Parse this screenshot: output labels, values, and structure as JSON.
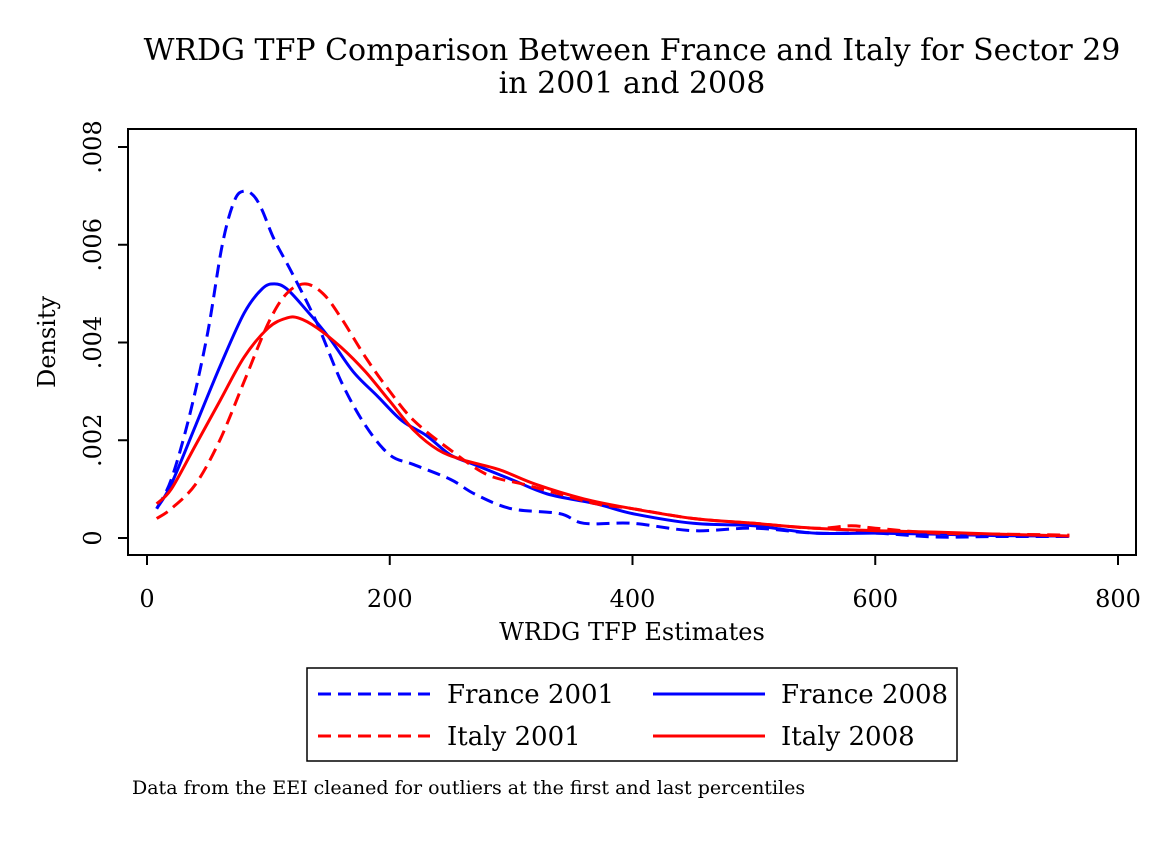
{
  "chart_data": {
    "type": "line",
    "title": "WRDG TFP Comparison Between France and Italy for Sector 29",
    "title_line2": "in 2001 and 2008",
    "xlabel": "WRDG TFP Estimates",
    "ylabel": "Density",
    "xlim": [
      0,
      800
    ],
    "ylim": [
      0,
      0.008
    ],
    "x_ticks": [
      0,
      200,
      400,
      600,
      800
    ],
    "x_tick_labels": [
      "0",
      "200",
      "400",
      "600",
      "800"
    ],
    "y_ticks": [
      0,
      0.002,
      0.004,
      0.006,
      0.008
    ],
    "y_tick_labels": [
      "0",
      ".002",
      ".004",
      ".006",
      ".008"
    ],
    "grid": false,
    "legend_position": "bottom",
    "note": "Data from the EEI cleaned for outliers at the first and last percentiles",
    "series": [
      {
        "name": "France 2001",
        "color": "#0000ff",
        "dash": "dashed",
        "points": [
          [
            8,
            0.0006
          ],
          [
            20,
            0.0012
          ],
          [
            35,
            0.0025
          ],
          [
            50,
            0.0042
          ],
          [
            62,
            0.006
          ],
          [
            72,
            0.0069
          ],
          [
            80,
            0.0071
          ],
          [
            88,
            0.007
          ],
          [
            95,
            0.0067
          ],
          [
            105,
            0.0061
          ],
          [
            120,
            0.0054
          ],
          [
            140,
            0.0044
          ],
          [
            160,
            0.0032
          ],
          [
            180,
            0.0023
          ],
          [
            200,
            0.0017
          ],
          [
            220,
            0.0015
          ],
          [
            250,
            0.0012
          ],
          [
            270,
            0.0009
          ],
          [
            300,
            0.0006
          ],
          [
            340,
            0.0005
          ],
          [
            360,
            0.0003
          ],
          [
            400,
            0.0003
          ],
          [
            450,
            0.00015
          ],
          [
            500,
            0.0002
          ],
          [
            550,
            0.0001
          ],
          [
            600,
            0.0001
          ],
          [
            650,
            2e-05
          ],
          [
            700,
            3e-05
          ],
          [
            760,
            3e-05
          ]
        ]
      },
      {
        "name": "France 2008",
        "color": "#0000ff",
        "dash": "solid",
        "points": [
          [
            8,
            0.0006
          ],
          [
            20,
            0.0011
          ],
          [
            40,
            0.0023
          ],
          [
            60,
            0.0035
          ],
          [
            80,
            0.0046
          ],
          [
            95,
            0.0051
          ],
          [
            105,
            0.0052
          ],
          [
            115,
            0.0051
          ],
          [
            130,
            0.0047
          ],
          [
            150,
            0.0041
          ],
          [
            170,
            0.0034
          ],
          [
            190,
            0.0029
          ],
          [
            210,
            0.0024
          ],
          [
            230,
            0.0021
          ],
          [
            250,
            0.0017
          ],
          [
            270,
            0.0015
          ],
          [
            300,
            0.0012
          ],
          [
            330,
            0.0009
          ],
          [
            370,
            0.0007
          ],
          [
            400,
            0.0005
          ],
          [
            450,
            0.0003
          ],
          [
            500,
            0.00025
          ],
          [
            550,
            0.0001
          ],
          [
            600,
            0.0001
          ],
          [
            650,
            8e-05
          ],
          [
            700,
            5e-05
          ],
          [
            760,
            4e-05
          ]
        ]
      },
      {
        "name": "Italy 2001",
        "color": "#ff0000",
        "dash": "dashed",
        "points": [
          [
            8,
            0.0004
          ],
          [
            20,
            0.0006
          ],
          [
            40,
            0.0011
          ],
          [
            60,
            0.002
          ],
          [
            80,
            0.0032
          ],
          [
            100,
            0.0044
          ],
          [
            115,
            0.005
          ],
          [
            130,
            0.0052
          ],
          [
            145,
            0.005
          ],
          [
            160,
            0.0045
          ],
          [
            180,
            0.0037
          ],
          [
            200,
            0.003
          ],
          [
            220,
            0.0024
          ],
          [
            250,
            0.0018
          ],
          [
            280,
            0.0013
          ],
          [
            310,
            0.0011
          ],
          [
            340,
            0.0009
          ],
          [
            370,
            0.0007
          ],
          [
            400,
            0.0006
          ],
          [
            450,
            0.0004
          ],
          [
            500,
            0.0003
          ],
          [
            550,
            0.0002
          ],
          [
            580,
            0.00025
          ],
          [
            600,
            0.0002
          ],
          [
            650,
            0.0001
          ],
          [
            700,
            8e-05
          ],
          [
            760,
            6e-05
          ]
        ]
      },
      {
        "name": "Italy 2008",
        "color": "#ff0000",
        "dash": "solid",
        "points": [
          [
            8,
            0.0007
          ],
          [
            20,
            0.001
          ],
          [
            40,
            0.0019
          ],
          [
            60,
            0.0028
          ],
          [
            80,
            0.0037
          ],
          [
            100,
            0.0043
          ],
          [
            115,
            0.0045
          ],
          [
            125,
            0.0045
          ],
          [
            140,
            0.0043
          ],
          [
            160,
            0.0039
          ],
          [
            180,
            0.0034
          ],
          [
            200,
            0.0028
          ],
          [
            220,
            0.0022
          ],
          [
            240,
            0.0018
          ],
          [
            260,
            0.0016
          ],
          [
            290,
            0.0014
          ],
          [
            320,
            0.0011
          ],
          [
            360,
            0.0008
          ],
          [
            400,
            0.0006
          ],
          [
            450,
            0.0004
          ],
          [
            500,
            0.0003
          ],
          [
            550,
            0.0002
          ],
          [
            600,
            0.00015
          ],
          [
            650,
            0.00012
          ],
          [
            700,
            8e-05
          ],
          [
            760,
            4e-05
          ]
        ]
      }
    ]
  }
}
